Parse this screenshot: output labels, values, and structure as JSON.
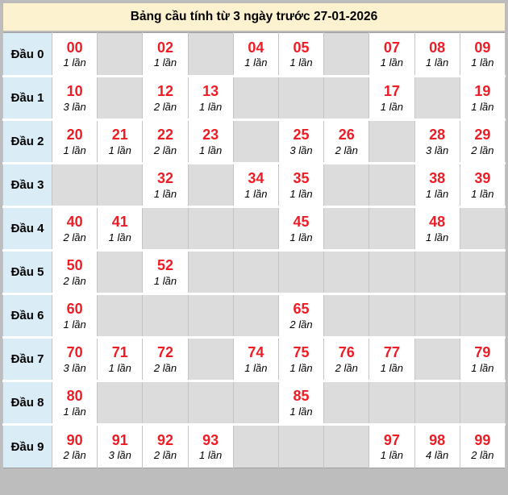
{
  "chart_data": {
    "type": "table",
    "title": "Bảng cầu tính từ 3 ngày trước 27-01-2026",
    "unit": "lần",
    "row_labels": [
      "Đầu 0",
      "Đầu 1",
      "Đầu 2",
      "Đầu 3",
      "Đầu 4",
      "Đầu 5",
      "Đầu 6",
      "Đầu 7",
      "Đầu 8",
      "Đầu 9"
    ],
    "rows": [
      {
        "label": "Đầu 0",
        "cells": [
          {
            "num": "00",
            "count": "1 lần"
          },
          null,
          {
            "num": "02",
            "count": "1 lần"
          },
          null,
          {
            "num": "04",
            "count": "1 lần"
          },
          {
            "num": "05",
            "count": "1 lần"
          },
          null,
          {
            "num": "07",
            "count": "1 lần"
          },
          {
            "num": "08",
            "count": "1 lần"
          },
          {
            "num": "09",
            "count": "1 lần"
          }
        ]
      },
      {
        "label": "Đầu 1",
        "cells": [
          {
            "num": "10",
            "count": "3 lần"
          },
          null,
          {
            "num": "12",
            "count": "2 lần"
          },
          {
            "num": "13",
            "count": "1 lần"
          },
          null,
          null,
          null,
          {
            "num": "17",
            "count": "1 lần"
          },
          null,
          {
            "num": "19",
            "count": "1 lần"
          }
        ]
      },
      {
        "label": "Đầu 2",
        "cells": [
          {
            "num": "20",
            "count": "1 lần"
          },
          {
            "num": "21",
            "count": "1 lần"
          },
          {
            "num": "22",
            "count": "2 lần"
          },
          {
            "num": "23",
            "count": "1 lần"
          },
          null,
          {
            "num": "25",
            "count": "3 lần"
          },
          {
            "num": "26",
            "count": "2 lần"
          },
          null,
          {
            "num": "28",
            "count": "3 lần"
          },
          {
            "num": "29",
            "count": "2 lần"
          }
        ]
      },
      {
        "label": "Đầu 3",
        "cells": [
          null,
          null,
          {
            "num": "32",
            "count": "1 lần"
          },
          null,
          {
            "num": "34",
            "count": "1 lần"
          },
          {
            "num": "35",
            "count": "1 lần"
          },
          null,
          null,
          {
            "num": "38",
            "count": "1 lần"
          },
          {
            "num": "39",
            "count": "1 lần"
          }
        ]
      },
      {
        "label": "Đầu 4",
        "cells": [
          {
            "num": "40",
            "count": "2 lần"
          },
          {
            "num": "41",
            "count": "1 lần"
          },
          null,
          null,
          null,
          {
            "num": "45",
            "count": "1 lần"
          },
          null,
          null,
          {
            "num": "48",
            "count": "1 lần"
          },
          null
        ]
      },
      {
        "label": "Đầu 5",
        "cells": [
          {
            "num": "50",
            "count": "2 lần"
          },
          null,
          {
            "num": "52",
            "count": "1 lần"
          },
          null,
          null,
          null,
          null,
          null,
          null,
          null
        ]
      },
      {
        "label": "Đầu 6",
        "cells": [
          {
            "num": "60",
            "count": "1 lần"
          },
          null,
          null,
          null,
          null,
          {
            "num": "65",
            "count": "2 lần"
          },
          null,
          null,
          null,
          null
        ]
      },
      {
        "label": "Đầu 7",
        "cells": [
          {
            "num": "70",
            "count": "3 lần"
          },
          {
            "num": "71",
            "count": "1 lần"
          },
          {
            "num": "72",
            "count": "2 lần"
          },
          null,
          {
            "num": "74",
            "count": "1 lần"
          },
          {
            "num": "75",
            "count": "1 lần"
          },
          {
            "num": "76",
            "count": "2 lần"
          },
          {
            "num": "77",
            "count": "1 lần"
          },
          null,
          {
            "num": "79",
            "count": "1 lần"
          }
        ]
      },
      {
        "label": "Đầu 8",
        "cells": [
          {
            "num": "80",
            "count": "1 lần"
          },
          null,
          null,
          null,
          null,
          {
            "num": "85",
            "count": "1 lần"
          },
          null,
          null,
          null,
          null
        ]
      },
      {
        "label": "Đầu 9",
        "cells": [
          {
            "num": "90",
            "count": "2 lần"
          },
          {
            "num": "91",
            "count": "3 lần"
          },
          {
            "num": "92",
            "count": "2 lần"
          },
          {
            "num": "93",
            "count": "1 lần"
          },
          null,
          null,
          null,
          {
            "num": "97",
            "count": "1 lần"
          },
          {
            "num": "98",
            "count": "4 lần"
          },
          {
            "num": "99",
            "count": "2 lần"
          }
        ]
      }
    ]
  },
  "colors": {
    "title_bg": "#fcf2cf",
    "number_red": "#ee1c25",
    "row_header_bg": "#daecf6",
    "empty_cell_bg": "#dcdcdc",
    "page_frame": "#bdbdbd"
  }
}
